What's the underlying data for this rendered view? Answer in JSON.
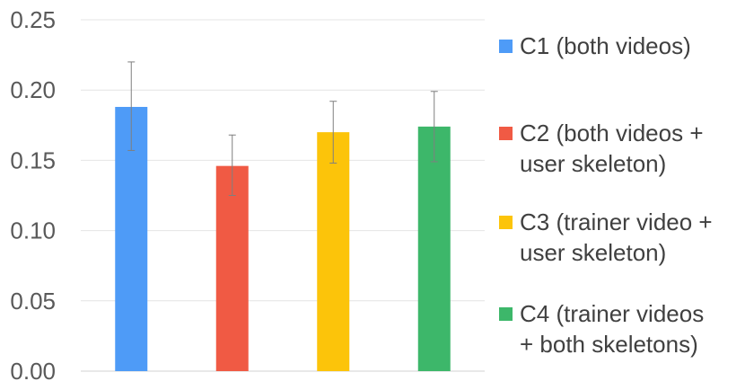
{
  "chart_data": {
    "type": "bar",
    "title": "",
    "xlabel": "",
    "ylabel": "",
    "ylim": [
      0,
      0.25
    ],
    "yticks": [
      "0.00",
      "0.05",
      "0.10",
      "0.15",
      "0.20",
      "0.25"
    ],
    "grid": true,
    "legend_position": "right",
    "categories": [
      "C1 (both videos)",
      "C2 (both videos + user skeleton)",
      "C3 (trainer video + user skeleton)",
      "C4 (trainer videos + both skeletons)"
    ],
    "values": [
      0.188,
      0.146,
      0.17,
      0.174
    ],
    "error_low": [
      0.157,
      0.125,
      0.148,
      0.149
    ],
    "error_high": [
      0.22,
      0.168,
      0.192,
      0.199
    ],
    "colors": [
      "#4e9bf7",
      "#f05a44",
      "#fcc40a",
      "#3db76a"
    ]
  },
  "legend": [
    {
      "label": "C1 (both videos)",
      "color": "#4e9bf7"
    },
    {
      "label": "C2 (both videos +\nuser skeleton)",
      "color": "#f05a44"
    },
    {
      "label": "C3 (trainer video +\nuser skeleton)",
      "color": "#fcc40a"
    },
    {
      "label": "C4 (trainer videos\n+ both skeletons)",
      "color": "#3db76a"
    }
  ]
}
